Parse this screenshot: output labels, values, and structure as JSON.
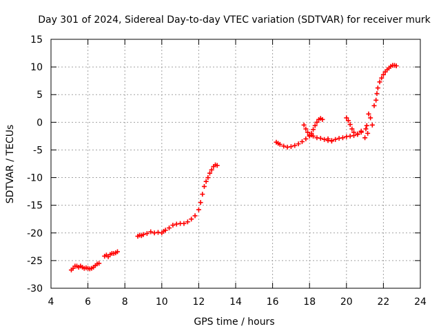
{
  "chart_data": {
    "type": "scatter",
    "title": "Day 301 of 2024, Sidereal Day-to-day VTEC variation (SDTVAR) for receiver murk",
    "xlabel": "GPS time / hours",
    "ylabel": "SDTVAR / TECUs",
    "xlim": [
      4,
      24
    ],
    "ylim": [
      -30,
      15
    ],
    "xticks": [
      "4",
      "6",
      "8",
      "10",
      "12",
      "14",
      "16",
      "18",
      "20",
      "22",
      "24"
    ],
    "yticks": [
      "15",
      "10",
      "5",
      "0",
      "-5",
      "-10",
      "-15",
      "-20",
      "-25",
      "-30"
    ],
    "grid": true,
    "marker": "plus",
    "color": "#ff0000",
    "series": [
      {
        "name": "SDTVAR",
        "points": [
          [
            5.1,
            -26.7
          ],
          [
            5.2,
            -26.4
          ],
          [
            5.3,
            -26.0
          ],
          [
            5.4,
            -26.0
          ],
          [
            5.5,
            -26.2
          ],
          [
            5.6,
            -26.0
          ],
          [
            5.7,
            -26.2
          ],
          [
            5.8,
            -26.4
          ],
          [
            5.9,
            -26.3
          ],
          [
            6.0,
            -26.4
          ],
          [
            6.1,
            -26.5
          ],
          [
            6.2,
            -26.4
          ],
          [
            6.3,
            -26.2
          ],
          [
            6.4,
            -25.9
          ],
          [
            6.5,
            -25.6
          ],
          [
            6.6,
            -25.5
          ],
          [
            6.9,
            -24.2
          ],
          [
            7.0,
            -24.0
          ],
          [
            7.1,
            -24.3
          ],
          [
            7.2,
            -23.9
          ],
          [
            7.3,
            -23.7
          ],
          [
            7.4,
            -23.7
          ],
          [
            7.5,
            -23.6
          ],
          [
            7.6,
            -23.4
          ],
          [
            8.7,
            -20.6
          ],
          [
            8.8,
            -20.4
          ],
          [
            8.9,
            -20.5
          ],
          [
            9.0,
            -20.3
          ],
          [
            9.2,
            -20.1
          ],
          [
            9.4,
            -19.8
          ],
          [
            9.6,
            -20.0
          ],
          [
            9.8,
            -19.9
          ],
          [
            10.0,
            -20.0
          ],
          [
            10.1,
            -19.7
          ],
          [
            10.2,
            -19.5
          ],
          [
            10.4,
            -19.1
          ],
          [
            10.6,
            -18.6
          ],
          [
            10.8,
            -18.4
          ],
          [
            11.0,
            -18.3
          ],
          [
            11.2,
            -18.3
          ],
          [
            11.4,
            -18.0
          ],
          [
            11.6,
            -17.5
          ],
          [
            11.8,
            -16.9
          ],
          [
            12.0,
            -15.8
          ],
          [
            12.1,
            -14.5
          ],
          [
            12.2,
            -13.0
          ],
          [
            12.3,
            -11.6
          ],
          [
            12.4,
            -10.7
          ],
          [
            12.5,
            -10.0
          ],
          [
            12.6,
            -9.2
          ],
          [
            12.7,
            -8.6
          ],
          [
            12.8,
            -8.0
          ],
          [
            12.9,
            -7.7
          ],
          [
            13.0,
            -7.8
          ],
          [
            16.2,
            -3.6
          ],
          [
            16.3,
            -3.8
          ],
          [
            16.4,
            -4.0
          ],
          [
            16.6,
            -4.3
          ],
          [
            16.8,
            -4.5
          ],
          [
            17.0,
            -4.4
          ],
          [
            17.2,
            -4.2
          ],
          [
            17.4,
            -3.9
          ],
          [
            17.6,
            -3.5
          ],
          [
            17.8,
            -3.0
          ],
          [
            18.0,
            -2.5
          ],
          [
            18.1,
            -2.3
          ],
          [
            18.2,
            -2.5
          ],
          [
            18.4,
            -2.8
          ],
          [
            18.6,
            -2.9
          ],
          [
            18.8,
            -3.1
          ],
          [
            19.0,
            -3.3
          ],
          [
            19.2,
            -3.4
          ],
          [
            19.4,
            -3.1
          ],
          [
            19.6,
            -2.9
          ],
          [
            19.8,
            -2.8
          ],
          [
            20.0,
            -2.6
          ],
          [
            20.2,
            -2.5
          ],
          [
            20.4,
            -2.4
          ],
          [
            20.6,
            -2.1
          ],
          [
            20.8,
            -1.6
          ],
          [
            17.7,
            -0.5
          ],
          [
            17.8,
            -1.2
          ],
          [
            17.9,
            -1.8
          ],
          [
            18.0,
            -2.3
          ],
          [
            18.1,
            -2.0
          ],
          [
            18.2,
            -1.3
          ],
          [
            18.3,
            -0.6
          ],
          [
            18.4,
            0.0
          ],
          [
            18.5,
            0.5
          ],
          [
            18.6,
            0.7
          ],
          [
            18.7,
            0.5
          ],
          [
            19.0,
            -3.0
          ],
          [
            19.2,
            -3.3
          ],
          [
            20.0,
            0.8
          ],
          [
            20.1,
            0.3
          ],
          [
            20.2,
            -0.4
          ],
          [
            20.3,
            -1.2
          ],
          [
            20.4,
            -1.8
          ],
          [
            20.6,
            -2.2
          ],
          [
            20.8,
            -1.8
          ],
          [
            21.0,
            -2.8
          ],
          [
            21.05,
            -1.2
          ],
          [
            21.1,
            -0.6
          ],
          [
            21.15,
            -2.0
          ],
          [
            21.2,
            1.5
          ],
          [
            21.3,
            0.8
          ],
          [
            21.4,
            -0.5
          ],
          [
            21.5,
            3.0
          ],
          [
            21.6,
            4.0
          ],
          [
            21.65,
            5.2
          ],
          [
            21.7,
            6.2
          ],
          [
            21.8,
            7.3
          ],
          [
            21.9,
            8.0
          ],
          [
            22.0,
            8.6
          ],
          [
            22.1,
            9.1
          ],
          [
            22.2,
            9.5
          ],
          [
            22.3,
            9.8
          ],
          [
            22.4,
            10.1
          ],
          [
            22.5,
            10.3
          ],
          [
            22.6,
            10.3
          ],
          [
            22.7,
            10.2
          ]
        ]
      }
    ]
  }
}
